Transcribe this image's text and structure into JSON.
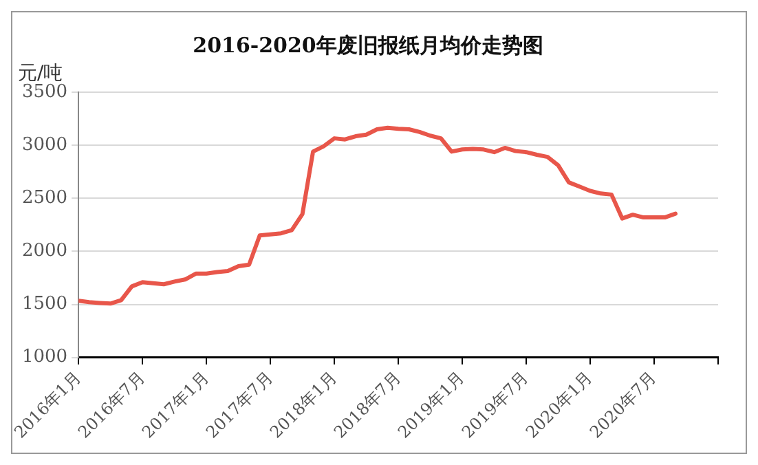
{
  "chart_data": {
    "type": "line",
    "title": "2016-2020年废旧报纸月均价走势图",
    "ylabel": "元/吨",
    "x": [
      "2016-01",
      "2016-02",
      "2016-03",
      "2016-04",
      "2016-05",
      "2016-06",
      "2016-07",
      "2016-08",
      "2016-09",
      "2016-10",
      "2016-11",
      "2016-12",
      "2017-01",
      "2017-02",
      "2017-03",
      "2017-04",
      "2017-05",
      "2017-06",
      "2017-07",
      "2017-08",
      "2017-09",
      "2017-10",
      "2017-11",
      "2017-12",
      "2018-01",
      "2018-02",
      "2018-03",
      "2018-04",
      "2018-05",
      "2018-06",
      "2018-07",
      "2018-08",
      "2018-09",
      "2018-10",
      "2018-11",
      "2018-12",
      "2019-01",
      "2019-02",
      "2019-03",
      "2019-04",
      "2019-05",
      "2019-06",
      "2019-07",
      "2019-08",
      "2019-09",
      "2019-10",
      "2019-11",
      "2019-12",
      "2020-01",
      "2020-02",
      "2020-03",
      "2020-04",
      "2020-05",
      "2020-06",
      "2020-07",
      "2020-08",
      "2020-09"
    ],
    "series": [
      {
        "color": "#e8564a",
        "values": [
          1535,
          1522,
          1514,
          1508,
          1540,
          1670,
          1710,
          1700,
          1690,
          1715,
          1735,
          1790,
          1790,
          1805,
          1815,
          1860,
          1875,
          2150,
          2160,
          2170,
          2200,
          2350,
          2940,
          2990,
          3065,
          3055,
          3085,
          3100,
          3150,
          3165,
          3155,
          3150,
          3125,
          3090,
          3065,
          2940,
          2960,
          2965,
          2960,
          2935,
          2975,
          2945,
          2935,
          2910,
          2890,
          2810,
          2650,
          2610,
          2570,
          2545,
          2535,
          2310,
          2345,
          2320,
          2320,
          2320,
          2355
        ]
      }
    ],
    "xlim": [
      "2016-01",
      "2021-01"
    ],
    "xticks": [
      {
        "value": "2016-01",
        "label": "2016年1月"
      },
      {
        "value": "2016-07",
        "label": "2016年7月"
      },
      {
        "value": "2017-01",
        "label": "2017年1月"
      },
      {
        "value": "2017-07",
        "label": "2017年7月"
      },
      {
        "value": "2018-01",
        "label": "2018年1月"
      },
      {
        "value": "2018-07",
        "label": "2018年7月"
      },
      {
        "value": "2019-01",
        "label": "2019年1月"
      },
      {
        "value": "2019-07",
        "label": "2019年7月"
      },
      {
        "value": "2020-01",
        "label": "2020年1月"
      },
      {
        "value": "2020-07",
        "label": "2020年7月"
      },
      {
        "value": "2021-01",
        "label": null
      }
    ],
    "ylim": [
      1000,
      3500
    ],
    "yticks": [
      1000,
      1500,
      2000,
      2500,
      3000,
      3500
    ],
    "grid": "y",
    "legend": false,
    "marker": "none",
    "line_style": "solid"
  }
}
